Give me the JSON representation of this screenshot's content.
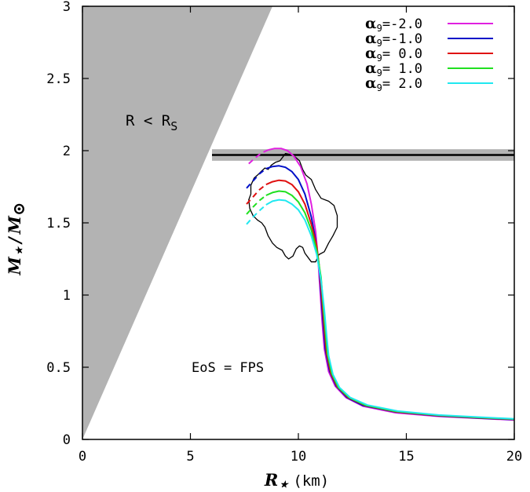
{
  "chart_data": {
    "type": "line",
    "title": "",
    "xlabel": "R",
    "xlabel_sub": "⋆",
    "xlabel_unit": "(km)",
    "ylabel_num": "M",
    "ylabel_num_sub": "⋆",
    "ylabel_den": "M",
    "ylabel_den_sub": "⊙",
    "xlim": [
      0,
      20
    ],
    "ylim": [
      0,
      3
    ],
    "xticks": [
      0,
      5,
      10,
      15,
      20
    ],
    "xtick_labels": [
      "0",
      "5",
      "10",
      "15",
      "20"
    ],
    "yticks": [
      0,
      0.5,
      1,
      1.5,
      2,
      2.5,
      3
    ],
    "ytick_labels": [
      "0",
      "0.5",
      "1",
      "1.5",
      "2",
      "2.5",
      "3"
    ],
    "grid": false,
    "legend_position": "top-right",
    "forbidden_region": {
      "label_main": "R < R",
      "label_sub": "S",
      "color": "#b3b3b3",
      "boundary": [
        [
          0,
          0
        ],
        [
          8.8,
          3
        ]
      ]
    },
    "mass_band": {
      "y_center": 1.97,
      "y_low": 1.93,
      "y_high": 2.01,
      "x_start": 6.0,
      "x_end": 20,
      "band_color": "#b3b3b3",
      "line_color": "#000000"
    },
    "eos_label": "EoS = FPS",
    "legend_symbol": "α",
    "legend_symbol_sub": "9",
    "series": [
      {
        "name": "=-2.0",
        "color": "#e020e0",
        "dashed_until": 8.6,
        "points": [
          [
            7.7,
            1.91
          ],
          [
            8.0,
            1.95
          ],
          [
            8.3,
            1.985
          ],
          [
            8.6,
            2.005
          ],
          [
            8.9,
            2.015
          ],
          [
            9.2,
            2.015
          ],
          [
            9.5,
            2.0
          ],
          [
            9.8,
            1.96
          ],
          [
            10.1,
            1.89
          ],
          [
            10.4,
            1.77
          ],
          [
            10.6,
            1.63
          ],
          [
            10.8,
            1.44
          ],
          [
            10.9,
            1.27
          ],
          [
            11.0,
            1.05
          ],
          [
            11.1,
            0.82
          ],
          [
            11.2,
            0.63
          ],
          [
            11.4,
            0.47
          ],
          [
            11.7,
            0.37
          ],
          [
            12.2,
            0.29
          ],
          [
            13.0,
            0.23
          ],
          [
            14.5,
            0.185
          ],
          [
            16.5,
            0.16
          ],
          [
            18.5,
            0.145
          ],
          [
            20.0,
            0.135
          ]
        ]
      },
      {
        "name": "=-1.0",
        "color": "#0010c8",
        "dashed_until": 8.4,
        "points": [
          [
            7.6,
            1.74
          ],
          [
            7.9,
            1.79
          ],
          [
            8.2,
            1.84
          ],
          [
            8.5,
            1.875
          ],
          [
            8.8,
            1.89
          ],
          [
            9.1,
            1.895
          ],
          [
            9.4,
            1.885
          ],
          [
            9.7,
            1.855
          ],
          [
            10.0,
            1.8
          ],
          [
            10.3,
            1.7
          ],
          [
            10.6,
            1.54
          ],
          [
            10.8,
            1.38
          ],
          [
            10.95,
            1.22
          ],
          [
            11.05,
            1.0
          ],
          [
            11.15,
            0.8
          ],
          [
            11.25,
            0.62
          ],
          [
            11.45,
            0.47
          ],
          [
            11.75,
            0.37
          ],
          [
            12.25,
            0.29
          ],
          [
            13.0,
            0.235
          ],
          [
            14.5,
            0.19
          ],
          [
            16.5,
            0.163
          ],
          [
            18.5,
            0.147
          ],
          [
            20.0,
            0.137
          ]
        ]
      },
      {
        "name": "=  0.0",
        "color": "#e01010",
        "dashed_until": 8.3,
        "points": [
          [
            7.6,
            1.63
          ],
          [
            7.9,
            1.68
          ],
          [
            8.2,
            1.73
          ],
          [
            8.5,
            1.765
          ],
          [
            8.8,
            1.785
          ],
          [
            9.1,
            1.795
          ],
          [
            9.4,
            1.79
          ],
          [
            9.7,
            1.765
          ],
          [
            10.0,
            1.715
          ],
          [
            10.3,
            1.63
          ],
          [
            10.6,
            1.49
          ],
          [
            10.85,
            1.34
          ],
          [
            11.0,
            1.15
          ],
          [
            11.1,
            0.96
          ],
          [
            11.2,
            0.77
          ],
          [
            11.3,
            0.6
          ],
          [
            11.5,
            0.46
          ],
          [
            11.8,
            0.365
          ],
          [
            12.3,
            0.29
          ],
          [
            13.1,
            0.235
          ],
          [
            14.5,
            0.192
          ],
          [
            16.5,
            0.165
          ],
          [
            18.5,
            0.149
          ],
          [
            20.0,
            0.139
          ]
        ]
      },
      {
        "name": "=  1.0",
        "color": "#20e020",
        "dashed_until": 8.3,
        "points": [
          [
            7.6,
            1.56
          ],
          [
            7.9,
            1.61
          ],
          [
            8.2,
            1.655
          ],
          [
            8.5,
            1.69
          ],
          [
            8.8,
            1.71
          ],
          [
            9.1,
            1.72
          ],
          [
            9.4,
            1.715
          ],
          [
            9.7,
            1.69
          ],
          [
            10.0,
            1.645
          ],
          [
            10.3,
            1.57
          ],
          [
            10.6,
            1.45
          ],
          [
            10.85,
            1.31
          ],
          [
            11.05,
            1.12
          ],
          [
            11.15,
            0.93
          ],
          [
            11.25,
            0.75
          ],
          [
            11.35,
            0.59
          ],
          [
            11.55,
            0.455
          ],
          [
            11.85,
            0.36
          ],
          [
            12.35,
            0.29
          ],
          [
            13.1,
            0.237
          ],
          [
            14.5,
            0.194
          ],
          [
            16.5,
            0.167
          ],
          [
            18.5,
            0.151
          ],
          [
            20.0,
            0.141
          ]
        ]
      },
      {
        "name": "=  2.0",
        "color": "#20e8f0",
        "dashed_until": 8.3,
        "points": [
          [
            7.6,
            1.49
          ],
          [
            7.9,
            1.54
          ],
          [
            8.2,
            1.585
          ],
          [
            8.5,
            1.625
          ],
          [
            8.8,
            1.65
          ],
          [
            9.1,
            1.66
          ],
          [
            9.4,
            1.655
          ],
          [
            9.7,
            1.63
          ],
          [
            10.0,
            1.59
          ],
          [
            10.3,
            1.52
          ],
          [
            10.6,
            1.41
          ],
          [
            10.85,
            1.28
          ],
          [
            11.05,
            1.1
          ],
          [
            11.2,
            0.9
          ],
          [
            11.3,
            0.73
          ],
          [
            11.4,
            0.58
          ],
          [
            11.6,
            0.45
          ],
          [
            11.9,
            0.36
          ],
          [
            12.4,
            0.29
          ],
          [
            13.2,
            0.238
          ],
          [
            14.6,
            0.196
          ],
          [
            16.5,
            0.169
          ],
          [
            18.5,
            0.153
          ],
          [
            20.0,
            0.143
          ]
        ]
      }
    ],
    "contour": {
      "color": "#000000",
      "points": [
        [
          9.15,
          1.93
        ],
        [
          9.4,
          1.98
        ],
        [
          9.75,
          1.97
        ],
        [
          10.05,
          1.93
        ],
        [
          10.2,
          1.87
        ],
        [
          10.35,
          1.83
        ],
        [
          10.6,
          1.8
        ],
        [
          10.8,
          1.73
        ],
        [
          11.05,
          1.67
        ],
        [
          11.4,
          1.65
        ],
        [
          11.65,
          1.62
        ],
        [
          11.8,
          1.55
        ],
        [
          11.8,
          1.47
        ],
        [
          11.6,
          1.41
        ],
        [
          11.4,
          1.36
        ],
        [
          11.2,
          1.3
        ],
        [
          10.95,
          1.28
        ],
        [
          10.8,
          1.23
        ],
        [
          10.6,
          1.23
        ],
        [
          10.45,
          1.26
        ],
        [
          10.3,
          1.29
        ],
        [
          10.2,
          1.33
        ],
        [
          10.05,
          1.34
        ],
        [
          9.9,
          1.32
        ],
        [
          9.75,
          1.27
        ],
        [
          9.55,
          1.25
        ],
        [
          9.4,
          1.27
        ],
        [
          9.25,
          1.31
        ],
        [
          9.0,
          1.33
        ],
        [
          8.8,
          1.36
        ],
        [
          8.6,
          1.41
        ],
        [
          8.45,
          1.47
        ],
        [
          8.3,
          1.5
        ],
        [
          8.1,
          1.52
        ],
        [
          7.9,
          1.55
        ],
        [
          7.75,
          1.6
        ],
        [
          7.7,
          1.66
        ],
        [
          7.8,
          1.7
        ],
        [
          7.8,
          1.76
        ],
        [
          7.95,
          1.81
        ],
        [
          8.1,
          1.83
        ],
        [
          8.3,
          1.86
        ],
        [
          8.45,
          1.88
        ],
        [
          8.6,
          1.87
        ],
        [
          8.75,
          1.9
        ],
        [
          8.95,
          1.92
        ],
        [
          9.15,
          1.93
        ]
      ]
    }
  }
}
